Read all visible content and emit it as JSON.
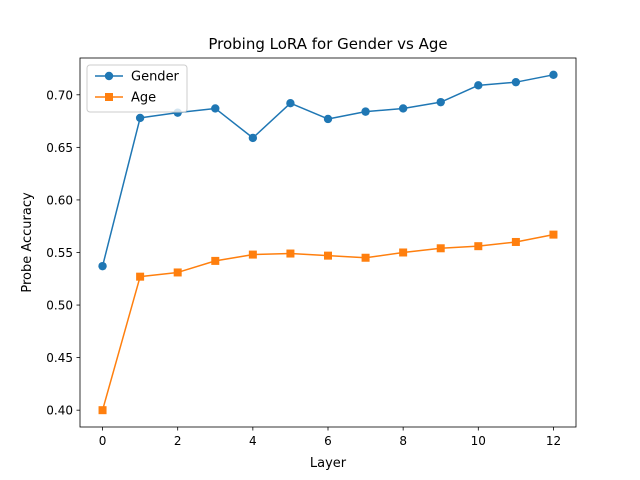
{
  "chart_data": {
    "type": "line",
    "title": "Probing LoRA for Gender vs Age",
    "xlabel": "Layer",
    "ylabel": "Probe Accuracy",
    "xlim": [
      -0.6,
      12.6
    ],
    "ylim": [
      0.384,
      0.735
    ],
    "xticks": [
      0,
      2,
      4,
      6,
      8,
      10,
      12
    ],
    "yticks": [
      0.4,
      0.45,
      0.5,
      0.55,
      0.6,
      0.65,
      0.7
    ],
    "x": [
      0,
      1,
      2,
      3,
      4,
      5,
      6,
      7,
      8,
      9,
      10,
      11,
      12
    ],
    "legend_position": "upper-left",
    "grid": false,
    "series": [
      {
        "name": "Gender",
        "color": "#1f77b4",
        "marker": "circle",
        "values": [
          0.537,
          0.678,
          0.683,
          0.687,
          0.659,
          0.692,
          0.677,
          0.684,
          0.687,
          0.693,
          0.709,
          0.712,
          0.719
        ]
      },
      {
        "name": "Age",
        "color": "#ff7f0e",
        "marker": "square",
        "values": [
          0.4,
          0.527,
          0.531,
          0.542,
          0.548,
          0.549,
          0.547,
          0.545,
          0.55,
          0.554,
          0.556,
          0.56,
          0.567
        ]
      }
    ]
  }
}
